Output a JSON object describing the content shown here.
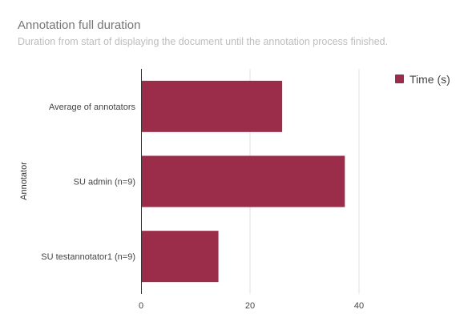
{
  "chart_data": {
    "type": "bar",
    "orientation": "horizontal",
    "title": "Annotation full duration",
    "subtitle": "Duration from start of displaying the document until the annotation process finished.",
    "ylabel": "Annotator",
    "xlabel": "",
    "categories": [
      "Average of annotators",
      "SU admin (n=9)",
      "SU testannotator1 (n=9)"
    ],
    "series": [
      {
        "name": "Time (s)",
        "color": "#9b2d4b",
        "values": [
          25.9,
          37.4,
          14.2
        ]
      }
    ],
    "xlim": [
      0,
      50
    ],
    "xticks": [
      0,
      20,
      40
    ],
    "grid": true,
    "legend_position": "top-right"
  }
}
